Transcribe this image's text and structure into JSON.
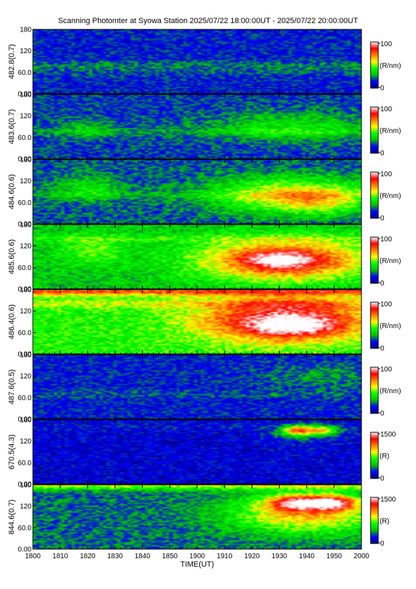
{
  "chart_data": {
    "type": "heatmap",
    "title": "Scanning Photomter at Syowa Station 2025/07/22 18:00:00UT - 2025/07/22 20:00:00UT",
    "xlabel": "TIME(UT)",
    "x_ticks": [
      "1800",
      "1810",
      "1820",
      "1830",
      "1840",
      "1850",
      "1900",
      "1910",
      "1920",
      "1930",
      "1940",
      "1950",
      "2000"
    ],
    "x_range": [
      0,
      120
    ],
    "y_ticks": [
      "0.00",
      "60.0",
      "120",
      "180"
    ],
    "y_range": [
      0,
      180
    ],
    "colorscale": [
      "#000080",
      "#0000ff",
      "#00c000",
      "#00ff00",
      "#ffff00",
      "#ff8000",
      "#ff0000",
      "#ffffff"
    ],
    "panels": [
      {
        "ylabel": "482.8(0.7)",
        "cbar_max": "100",
        "cbar_min": "0",
        "cbar_unit": "(R/nm)",
        "base": 0.15,
        "bands": [
          [
            80,
            0.08
          ],
          [
            60,
            0.05
          ]
        ],
        "blobs": []
      },
      {
        "ylabel": "483.6(0.7)",
        "cbar_max": "100",
        "cbar_min": "0",
        "cbar_unit": "(R/nm)",
        "base": 0.18,
        "bands": [
          [
            75,
            0.08
          ]
        ],
        "blobs": [
          [
            20,
            85,
            10,
            25,
            0.12
          ],
          [
            95,
            90,
            30,
            40,
            0.2
          ]
        ]
      },
      {
        "ylabel": "484.6(0.6)",
        "cbar_max": "100",
        "cbar_min": "0",
        "cbar_unit": "(R/nm)",
        "base": 0.2,
        "bands": [
          [
            80,
            0.06
          ]
        ],
        "blobs": [
          [
            20,
            100,
            12,
            35,
            0.18
          ],
          [
            95,
            80,
            30,
            50,
            0.4
          ],
          [
            105,
            60,
            15,
            35,
            0.15
          ]
        ]
      },
      {
        "ylabel": "485.6(0.6)",
        "cbar_max": "100",
        "cbar_min": "0",
        "cbar_unit": "(R/nm)",
        "base": 0.32,
        "bands": [
          [
            140,
            0.08
          ]
        ],
        "blobs": [
          [
            22,
            110,
            12,
            40,
            0.15
          ],
          [
            92,
            80,
            30,
            55,
            0.55
          ],
          [
            90,
            80,
            12,
            25,
            0.25
          ]
        ]
      },
      {
        "ylabel": "486.4(0.6)",
        "cbar_max": "100",
        "cbar_min": "0",
        "cbar_unit": "(R/nm)",
        "base": 0.42,
        "bands": [
          [
            175,
            0.35
          ],
          [
            140,
            0.12
          ]
        ],
        "blobs": [
          [
            92,
            95,
            30,
            60,
            0.55
          ],
          [
            95,
            75,
            15,
            25,
            0.25
          ]
        ]
      },
      {
        "ylabel": "487.6(0.5)",
        "cbar_max": "100",
        "cbar_min": "0",
        "cbar_unit": "(R/nm)",
        "base": 0.15,
        "bands": [
          [
            70,
            0.05
          ]
        ],
        "blobs": [
          [
            105,
            120,
            20,
            35,
            0.12
          ]
        ]
      },
      {
        "ylabel": "670.5(4.3)",
        "cbar_max": "1500",
        "cbar_min": "0",
        "cbar_unit": "(R)",
        "base": 0.1,
        "bands": [
          [
            160,
            0.04
          ]
        ],
        "blobs": [
          [
            97,
            150,
            6,
            14,
            0.55
          ],
          [
            106,
            150,
            5,
            12,
            0.4
          ],
          [
            100,
            140,
            15,
            25,
            0.12
          ]
        ]
      },
      {
        "ylabel": "844.6(0.7)",
        "cbar_max": "1500",
        "cbar_min": "0",
        "cbar_unit": "(R)",
        "base": 0.22,
        "bands": [
          [
            178,
            0.3
          ]
        ],
        "blobs": [
          [
            100,
            100,
            28,
            55,
            0.45
          ],
          [
            97,
            130,
            10,
            20,
            0.55
          ],
          [
            110,
            130,
            8,
            20,
            0.5
          ]
        ]
      }
    ]
  }
}
